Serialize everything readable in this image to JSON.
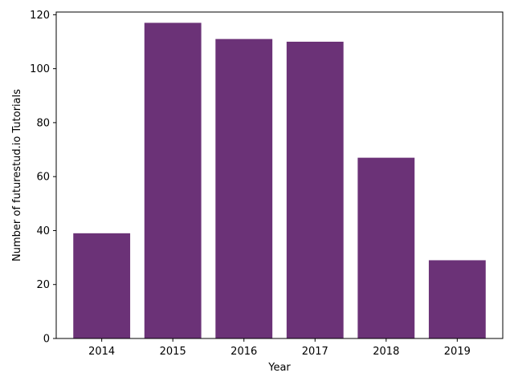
{
  "chart_data": {
    "type": "bar",
    "categories": [
      "2014",
      "2015",
      "2016",
      "2017",
      "2018",
      "2019"
    ],
    "values": [
      39,
      117,
      111,
      110,
      67,
      29
    ],
    "title": "",
    "xlabel": "Year",
    "ylabel": "Number of futurestud.io Tutorials",
    "ylim": [
      0,
      121
    ],
    "yticks": [
      0,
      20,
      40,
      60,
      80,
      100,
      120
    ],
    "grid": false,
    "legend": "none",
    "bar_color": "#6b3277"
  }
}
